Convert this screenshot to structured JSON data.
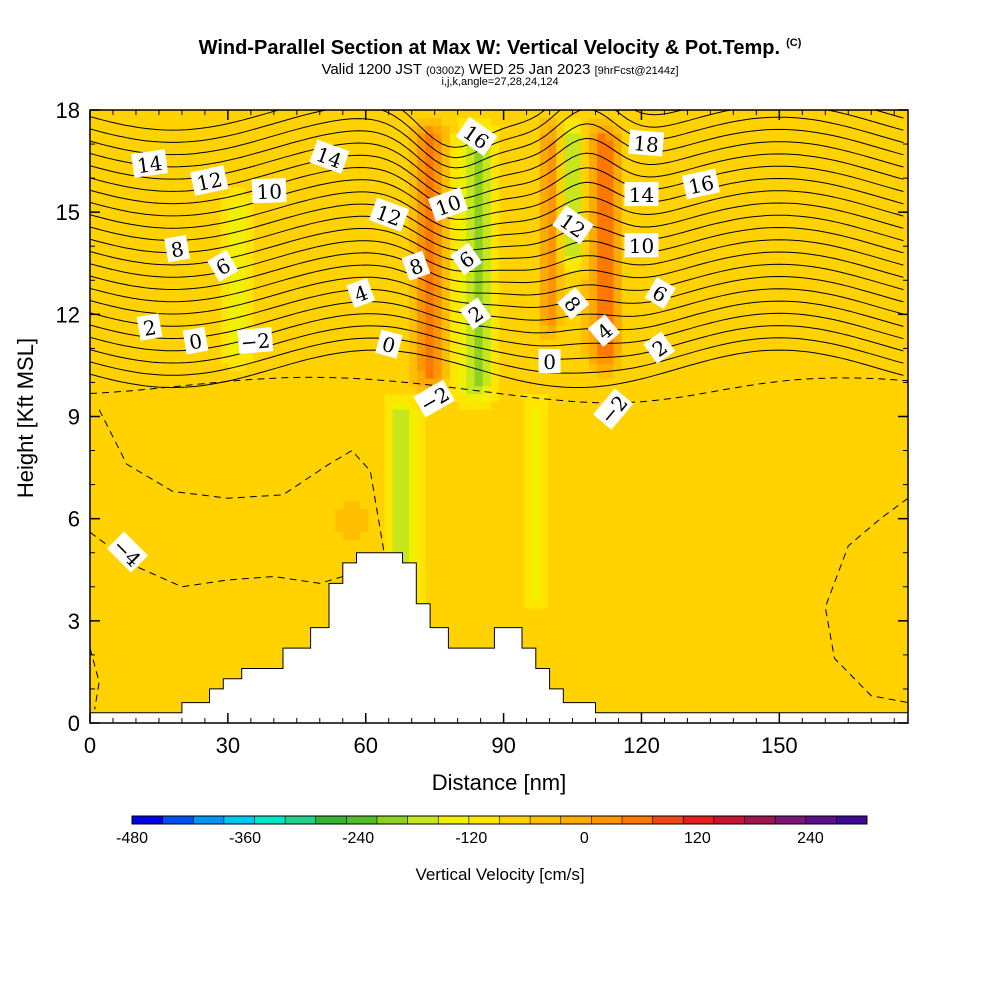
{
  "header": {
    "title": "Wind-Parallel Section at Max W: Vertical Velocity & Pot.Temp.",
    "title_mark": "(C)",
    "valid_prefix": "Valid 1200 JST",
    "valid_utc": "(0300Z)",
    "valid_date": "WED 25 Jan 2023",
    "forecast": "[9hrFcst@2144z]",
    "indices": "i,j,k,angle=27,28,24,124"
  },
  "chart_data": {
    "type": "heatmap",
    "xlabel": "Distance [nm]",
    "ylabel": "Height [Kft MSL]",
    "xlim": [
      0,
      178
    ],
    "ylim": [
      0,
      18
    ],
    "xticks": [
      "0",
      "30",
      "60",
      "90",
      "120",
      "150"
    ],
    "yticks": [
      "0",
      "3",
      "6",
      "9",
      "12",
      "15",
      "18"
    ],
    "background_value_cm_s": 20,
    "vertical_velocity_bands": [
      {
        "x_center": 68,
        "half_width": 3,
        "z_from": 2,
        "z_to": 10,
        "value": -120
      },
      {
        "x_center": 74,
        "half_width": 3,
        "z_from": 9.5,
        "z_to": 18,
        "value": 200
      },
      {
        "x_center": 84,
        "half_width": 4,
        "z_from": 9,
        "z_to": 18,
        "value": -130
      },
      {
        "x_center": 97,
        "half_width": 3,
        "z_from": 3,
        "z_to": 10,
        "value": -60
      },
      {
        "x_center": 100,
        "half_width": 2,
        "z_from": 11,
        "z_to": 18,
        "value": 140
      },
      {
        "x_center": 105,
        "half_width": 2,
        "z_from": 13,
        "z_to": 18,
        "value": -150
      },
      {
        "x_center": 112,
        "half_width": 3,
        "z_from": 10,
        "z_to": 18,
        "value": 190
      },
      {
        "x_center": 57,
        "half_width": 5,
        "z_from": 5,
        "z_to": 7,
        "value": 60
      },
      {
        "x_center": 32,
        "half_width": 3,
        "z_from": 10,
        "z_to": 16,
        "value": -60
      },
      {
        "x_center": 5,
        "half_width": 5,
        "z_from": 0.5,
        "z_to": 9,
        "value": 40
      }
    ],
    "terrain": [
      {
        "x": 0,
        "z": 0.3
      },
      {
        "x": 20,
        "z": 0.3
      },
      {
        "x": 20,
        "z": 0.6
      },
      {
        "x": 26,
        "z": 0.6
      },
      {
        "x": 26,
        "z": 1.0
      },
      {
        "x": 29,
        "z": 1.0
      },
      {
        "x": 29,
        "z": 1.3
      },
      {
        "x": 33,
        "z": 1.3
      },
      {
        "x": 33,
        "z": 1.6
      },
      {
        "x": 42,
        "z": 1.6
      },
      {
        "x": 42,
        "z": 2.2
      },
      {
        "x": 48,
        "z": 2.2
      },
      {
        "x": 48,
        "z": 2.8
      },
      {
        "x": 52,
        "z": 2.8
      },
      {
        "x": 52,
        "z": 4.1
      },
      {
        "x": 55,
        "z": 4.1
      },
      {
        "x": 55,
        "z": 4.7
      },
      {
        "x": 58,
        "z": 4.7
      },
      {
        "x": 58,
        "z": 5.0
      },
      {
        "x": 68,
        "z": 5.0
      },
      {
        "x": 68,
        "z": 4.7
      },
      {
        "x": 71,
        "z": 4.7
      },
      {
        "x": 71,
        "z": 3.5
      },
      {
        "x": 74,
        "z": 3.5
      },
      {
        "x": 74,
        "z": 2.8
      },
      {
        "x": 78,
        "z": 2.8
      },
      {
        "x": 78,
        "z": 2.2
      },
      {
        "x": 88,
        "z": 2.2
      },
      {
        "x": 88,
        "z": 2.8
      },
      {
        "x": 94,
        "z": 2.8
      },
      {
        "x": 94,
        "z": 2.2
      },
      {
        "x": 97,
        "z": 2.2
      },
      {
        "x": 97,
        "z": 1.6
      },
      {
        "x": 100,
        "z": 1.6
      },
      {
        "x": 100,
        "z": 1.0
      },
      {
        "x": 103,
        "z": 1.0
      },
      {
        "x": 103,
        "z": 0.6
      },
      {
        "x": 110,
        "z": 0.6
      },
      {
        "x": 110,
        "z": 0.3
      },
      {
        "x": 178,
        "z": 0.3
      }
    ],
    "theta_contour_labels": [
      {
        "text": "14",
        "x": 13,
        "z": 16.4,
        "angle": -8
      },
      {
        "text": "12",
        "x": 26,
        "z": 15.9,
        "angle": -12
      },
      {
        "text": "10",
        "x": 39,
        "z": 15.6,
        "angle": -2
      },
      {
        "text": "14",
        "x": 52,
        "z": 16.6,
        "angle": 20
      },
      {
        "text": "16",
        "x": 84,
        "z": 17.2,
        "angle": 35
      },
      {
        "text": "18",
        "x": 121,
        "z": 17.0,
        "angle": 5
      },
      {
        "text": "14",
        "x": 120,
        "z": 15.5,
        "angle": 0
      },
      {
        "text": "16",
        "x": 133,
        "z": 15.8,
        "angle": -12
      },
      {
        "text": "12",
        "x": 65,
        "z": 14.9,
        "angle": 20
      },
      {
        "text": "10",
        "x": 78,
        "z": 15.2,
        "angle": -20
      },
      {
        "text": "12",
        "x": 105,
        "z": 14.6,
        "angle": 35
      },
      {
        "text": "10",
        "x": 120,
        "z": 14.0,
        "angle": 0
      },
      {
        "text": "8",
        "x": 19,
        "z": 13.9,
        "angle": -10
      },
      {
        "text": "6",
        "x": 29,
        "z": 13.4,
        "angle": -30
      },
      {
        "text": "8",
        "x": 71,
        "z": 13.4,
        "angle": -20
      },
      {
        "text": "6",
        "x": 82,
        "z": 13.6,
        "angle": -35
      },
      {
        "text": "8",
        "x": 105,
        "z": 12.3,
        "angle": 50
      },
      {
        "text": "6",
        "x": 124,
        "z": 12.6,
        "angle": 30
      },
      {
        "text": "4",
        "x": 59,
        "z": 12.6,
        "angle": -20
      },
      {
        "text": "2",
        "x": 84,
        "z": 12.0,
        "angle": -35
      },
      {
        "text": "4",
        "x": 112,
        "z": 11.5,
        "angle": -40
      },
      {
        "text": "2",
        "x": 124,
        "z": 11.0,
        "angle": -35
      },
      {
        "text": "2",
        "x": 13,
        "z": 11.6,
        "angle": -10
      },
      {
        "text": "0",
        "x": 23,
        "z": 11.2,
        "angle": -10
      },
      {
        "text": "−2",
        "x": 36,
        "z": 11.2,
        "angle": -5
      },
      {
        "text": "0",
        "x": 65,
        "z": 11.1,
        "angle": 15
      },
      {
        "text": "0",
        "x": 100,
        "z": 10.6,
        "angle": 0
      },
      {
        "text": "−2",
        "x": 75,
        "z": 9.5,
        "angle": -30
      },
      {
        "text": "−2",
        "x": 114,
        "z": 9.2,
        "angle": -50
      },
      {
        "text": "−4",
        "x": 8,
        "z": 5.0,
        "angle": 45
      }
    ],
    "colorbar": {
      "label": "Vertical Velocity [cm/s]",
      "min": -480,
      "max": 300,
      "step": 40,
      "tick_labels": [
        {
          "value": -480,
          "text": "-480"
        },
        {
          "value": -360,
          "text": "-360"
        },
        {
          "value": -240,
          "text": "-240"
        },
        {
          "value": -120,
          "text": "-120"
        },
        {
          "value": 0,
          "text": "0"
        },
        {
          "value": 120,
          "text": "120"
        },
        {
          "value": 240,
          "text": "240"
        }
      ],
      "colors": [
        "#0000e6",
        "#0050f0",
        "#0095f5",
        "#00c8f5",
        "#00e6c8",
        "#20d28a",
        "#32b432",
        "#50be28",
        "#8cd21e",
        "#c8e61e",
        "#f0f000",
        "#ffe600",
        "#ffd200",
        "#ffbe00",
        "#ffaa00",
        "#ff9600",
        "#ff7800",
        "#f04614",
        "#e61e1e",
        "#c81432",
        "#a01450",
        "#7d1478",
        "#5a0f8c",
        "#3c0a96"
      ]
    }
  }
}
